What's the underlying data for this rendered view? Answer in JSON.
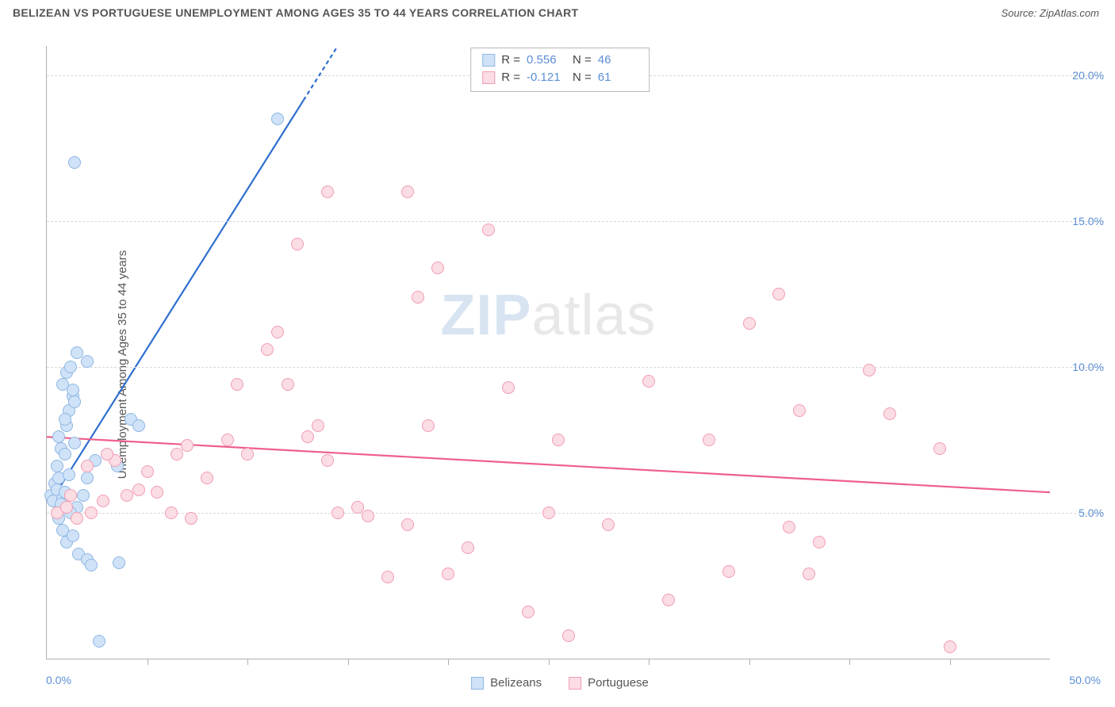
{
  "header": {
    "title": "BELIZEAN VS PORTUGUESE UNEMPLOYMENT AMONG AGES 35 TO 44 YEARS CORRELATION CHART",
    "source_prefix": "Source: ",
    "source": "ZipAtlas.com"
  },
  "ylabel": "Unemployment Among Ages 35 to 44 years",
  "watermark": {
    "bold": "ZIP",
    "thin": "atlas"
  },
  "chart": {
    "type": "scatter",
    "xlim": [
      0,
      50
    ],
    "ylim": [
      0,
      21
    ],
    "x_tick_step": 5,
    "x_origin_label": "0.0%",
    "x_max_label": "50.0%",
    "y_ticks": [
      5,
      10,
      15,
      20
    ],
    "y_tick_labels": [
      "5.0%",
      "10.0%",
      "15.0%",
      "20.0%"
    ],
    "grid_color": "#d8d8d8",
    "axis_color": "#b0b0b0",
    "background_color": "#ffffff",
    "point_radius": 8,
    "series": [
      {
        "name": "Belizeans",
        "fill": "#cfe2f7",
        "stroke": "#8fb7e4",
        "r_label": "R =",
        "r_value": "0.556",
        "n_label": "N =",
        "n_value": "46",
        "trend": {
          "x1": 0.3,
          "y1": 5.5,
          "x2": 14.5,
          "y2": 21.0,
          "dash_end": true,
          "color": "#2f6fd0",
          "width": 2.2
        },
        "points": [
          [
            0.2,
            5.6
          ],
          [
            0.3,
            5.4
          ],
          [
            0.4,
            6.0
          ],
          [
            0.5,
            5.8
          ],
          [
            0.6,
            6.2
          ],
          [
            0.8,
            5.5
          ],
          [
            0.5,
            6.6
          ],
          [
            0.7,
            7.2
          ],
          [
            0.6,
            7.6
          ],
          [
            0.9,
            7.0
          ],
          [
            1.0,
            8.0
          ],
          [
            1.1,
            8.5
          ],
          [
            1.3,
            9.0
          ],
          [
            0.8,
            9.4
          ],
          [
            1.0,
            9.8
          ],
          [
            1.2,
            10.0
          ],
          [
            1.5,
            10.5
          ],
          [
            1.3,
            9.2
          ],
          [
            1.4,
            8.8
          ],
          [
            0.9,
            8.2
          ],
          [
            0.6,
            4.8
          ],
          [
            0.8,
            4.4
          ],
          [
            1.0,
            4.0
          ],
          [
            1.3,
            4.2
          ],
          [
            1.6,
            3.6
          ],
          [
            2.0,
            3.4
          ],
          [
            2.2,
            3.2
          ],
          [
            3.6,
            3.3
          ],
          [
            2.0,
            6.2
          ],
          [
            2.4,
            6.8
          ],
          [
            3.0,
            7.0
          ],
          [
            3.5,
            6.6
          ],
          [
            4.2,
            8.2
          ],
          [
            4.6,
            8.0
          ],
          [
            1.8,
            5.6
          ],
          [
            1.5,
            5.2
          ],
          [
            1.2,
            5.0
          ],
          [
            2.0,
            10.2
          ],
          [
            1.4,
            17.0
          ],
          [
            11.5,
            18.5
          ],
          [
            2.6,
            0.6
          ],
          [
            0.5,
            5.0
          ],
          [
            0.7,
            5.3
          ],
          [
            0.9,
            5.7
          ],
          [
            1.1,
            6.3
          ],
          [
            1.4,
            7.4
          ]
        ]
      },
      {
        "name": "Portuguese",
        "fill": "#fbdde4",
        "stroke": "#f19cb3",
        "r_label": "R =",
        "r_value": "-0.121",
        "n_label": "N =",
        "n_value": "61",
        "trend": {
          "x1": 0.0,
          "y1": 7.6,
          "x2": 50.0,
          "y2": 5.7,
          "dash_end": false,
          "color": "#ef5f8b",
          "width": 2.2
        },
        "points": [
          [
            0.5,
            5.0
          ],
          [
            1.0,
            5.2
          ],
          [
            1.5,
            4.8
          ],
          [
            2.2,
            5.0
          ],
          [
            2.8,
            5.4
          ],
          [
            3.4,
            6.8
          ],
          [
            4.0,
            5.6
          ],
          [
            4.6,
            5.8
          ],
          [
            5.5,
            5.7
          ],
          [
            6.2,
            5.0
          ],
          [
            7.0,
            7.3
          ],
          [
            7.2,
            4.8
          ],
          [
            9.0,
            7.5
          ],
          [
            9.5,
            9.4
          ],
          [
            11.0,
            10.6
          ],
          [
            11.5,
            11.2
          ],
          [
            12.0,
            9.4
          ],
          [
            12.5,
            14.2
          ],
          [
            13.5,
            8.0
          ],
          [
            14.0,
            6.8
          ],
          [
            14.5,
            5.0
          ],
          [
            14.0,
            16.0
          ],
          [
            15.5,
            5.2
          ],
          [
            16.0,
            4.9
          ],
          [
            17.0,
            2.8
          ],
          [
            18.0,
            4.6
          ],
          [
            18.0,
            16.0
          ],
          [
            18.5,
            12.4
          ],
          [
            19.0,
            8.0
          ],
          [
            19.5,
            13.4
          ],
          [
            20.0,
            2.9
          ],
          [
            21.0,
            3.8
          ],
          [
            22.0,
            14.7
          ],
          [
            23.0,
            9.3
          ],
          [
            24.0,
            1.6
          ],
          [
            25.0,
            5.0
          ],
          [
            25.5,
            7.5
          ],
          [
            26.0,
            0.8
          ],
          [
            28.0,
            4.6
          ],
          [
            30.0,
            9.5
          ],
          [
            31.0,
            2.0
          ],
          [
            33.0,
            7.5
          ],
          [
            34.0,
            3.0
          ],
          [
            35.0,
            11.5
          ],
          [
            36.5,
            12.5
          ],
          [
            37.0,
            4.5
          ],
          [
            37.5,
            8.5
          ],
          [
            38.0,
            2.9
          ],
          [
            38.5,
            4.0
          ],
          [
            41.0,
            9.9
          ],
          [
            42.0,
            8.4
          ],
          [
            44.5,
            7.2
          ],
          [
            45.0,
            0.4
          ],
          [
            13.0,
            7.6
          ],
          [
            8.0,
            6.2
          ],
          [
            10.0,
            7.0
          ],
          [
            6.5,
            7.0
          ],
          [
            5.0,
            6.4
          ],
          [
            3.0,
            7.0
          ],
          [
            2.0,
            6.6
          ],
          [
            1.2,
            5.6
          ]
        ]
      }
    ]
  },
  "legend": {
    "items": [
      "Belizeans",
      "Portuguese"
    ]
  }
}
